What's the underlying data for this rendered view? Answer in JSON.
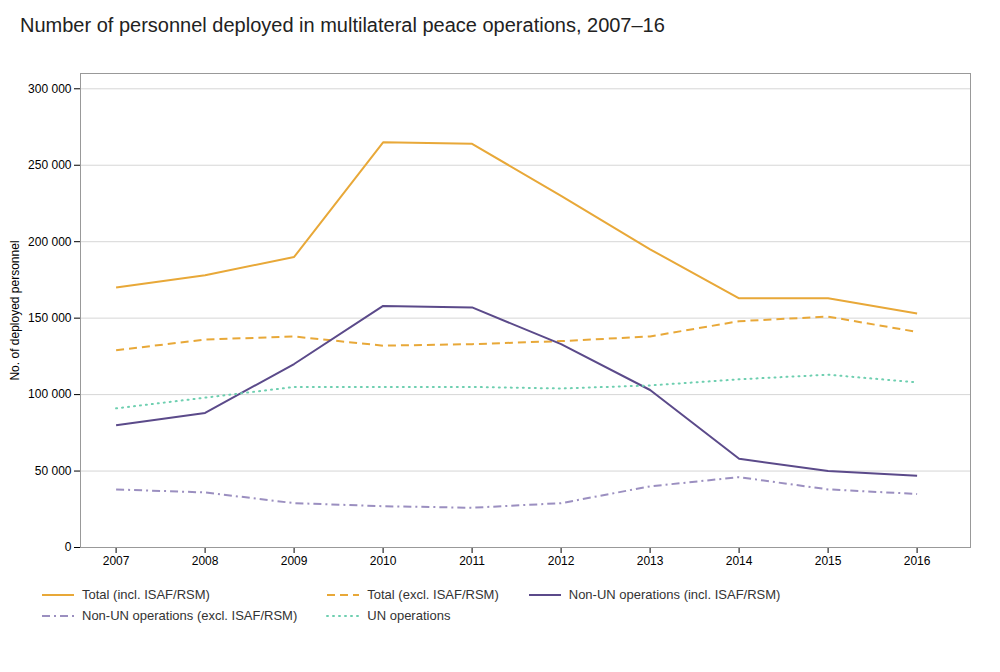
{
  "chart_data": {
    "type": "line",
    "title": "Number of personnel deployed in multilateral peace operations, 2007–16",
    "ylabel": "No. of deployed personnel",
    "x": [
      2007,
      2008,
      2009,
      2010,
      2011,
      2012,
      2013,
      2014,
      2015,
      2016
    ],
    "xlim": [
      2006.6,
      2016.6
    ],
    "xticks": [
      2007,
      2008,
      2009,
      2010,
      2011,
      2012,
      2013,
      2014,
      2015,
      2016
    ],
    "series": [
      {
        "name": "Total (incl. ISAF/RSM)",
        "color": "#E8A838",
        "line_style": "solid",
        "values": [
          170000,
          178000,
          190000,
          265000,
          264000,
          230000,
          195000,
          163000,
          163000,
          153000
        ]
      },
      {
        "name": "Total (excl. ISAF/RSM)",
        "color": "#E8A838",
        "line_style": "dashed",
        "values": [
          129000,
          136000,
          138000,
          132000,
          133000,
          135000,
          138000,
          148000,
          151000,
          141000
        ]
      },
      {
        "name": "Non-UN operations (incl. ISAF/RSM)",
        "color": "#5B4A8A",
        "line_style": "solid",
        "values": [
          80000,
          88000,
          120000,
          158000,
          157000,
          133000,
          103000,
          58000,
          50000,
          47000
        ]
      },
      {
        "name": "Non-UN operations (excl. ISAF/RSM)",
        "color": "#9B8FC0",
        "line_style": "dashdot",
        "values": [
          38000,
          36000,
          29000,
          27000,
          26000,
          29000,
          40000,
          46000,
          38000,
          35000
        ]
      },
      {
        "name": "UN operations",
        "color": "#6ECFB0",
        "line_style": "dotted",
        "values": [
          91000,
          98000,
          105000,
          105000,
          105000,
          104000,
          106000,
          110000,
          113000,
          108000
        ]
      }
    ],
    "ylim": [
      0,
      310000
    ],
    "yticks": [
      0,
      {
        "value": 50000,
        "label": "50 000"
      },
      {
        "value": 100000,
        "label": "100 000"
      },
      {
        "value": 150000,
        "label": "150 000"
      },
      {
        "value": 200000,
        "label": "200 000"
      },
      {
        "value": 250000,
        "label": "250 000"
      },
      {
        "value": 300000,
        "label": "300 000"
      }
    ],
    "grid": true,
    "legend": "bottom"
  }
}
